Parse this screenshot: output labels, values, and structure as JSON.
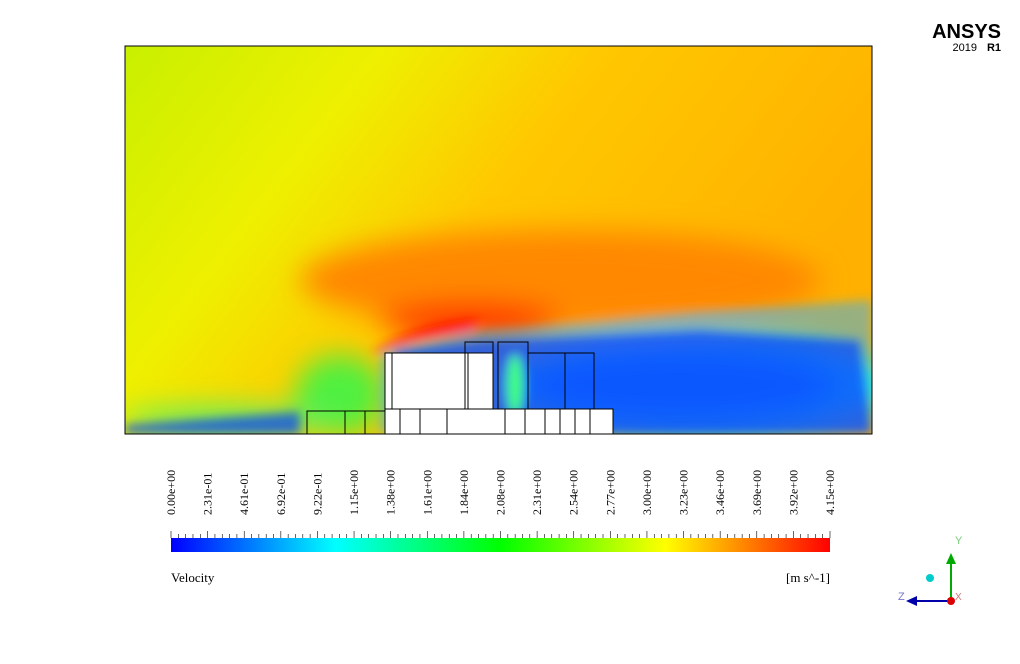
{
  "logo": {
    "name": "ANSYS",
    "version": "2019",
    "release": "R1"
  },
  "legend": {
    "title": "Velocity",
    "unit": "[m s^-1]",
    "ticks": [
      "0.00e+00",
      "2.31e-01",
      "4.61e-01",
      "6.92e-01",
      "9.22e-01",
      "1.15e+00",
      "1.38e+00",
      "1.61e+00",
      "1.84e+00",
      "2.08e+00",
      "2.31e+00",
      "2.54e+00",
      "2.77e+00",
      "3.00e+00",
      "3.23e+00",
      "3.46e+00",
      "3.69e+00",
      "3.92e+00",
      "4.15e+00"
    ]
  },
  "triad": {
    "y": "Y",
    "z": "Z",
    "x": "X"
  }
}
